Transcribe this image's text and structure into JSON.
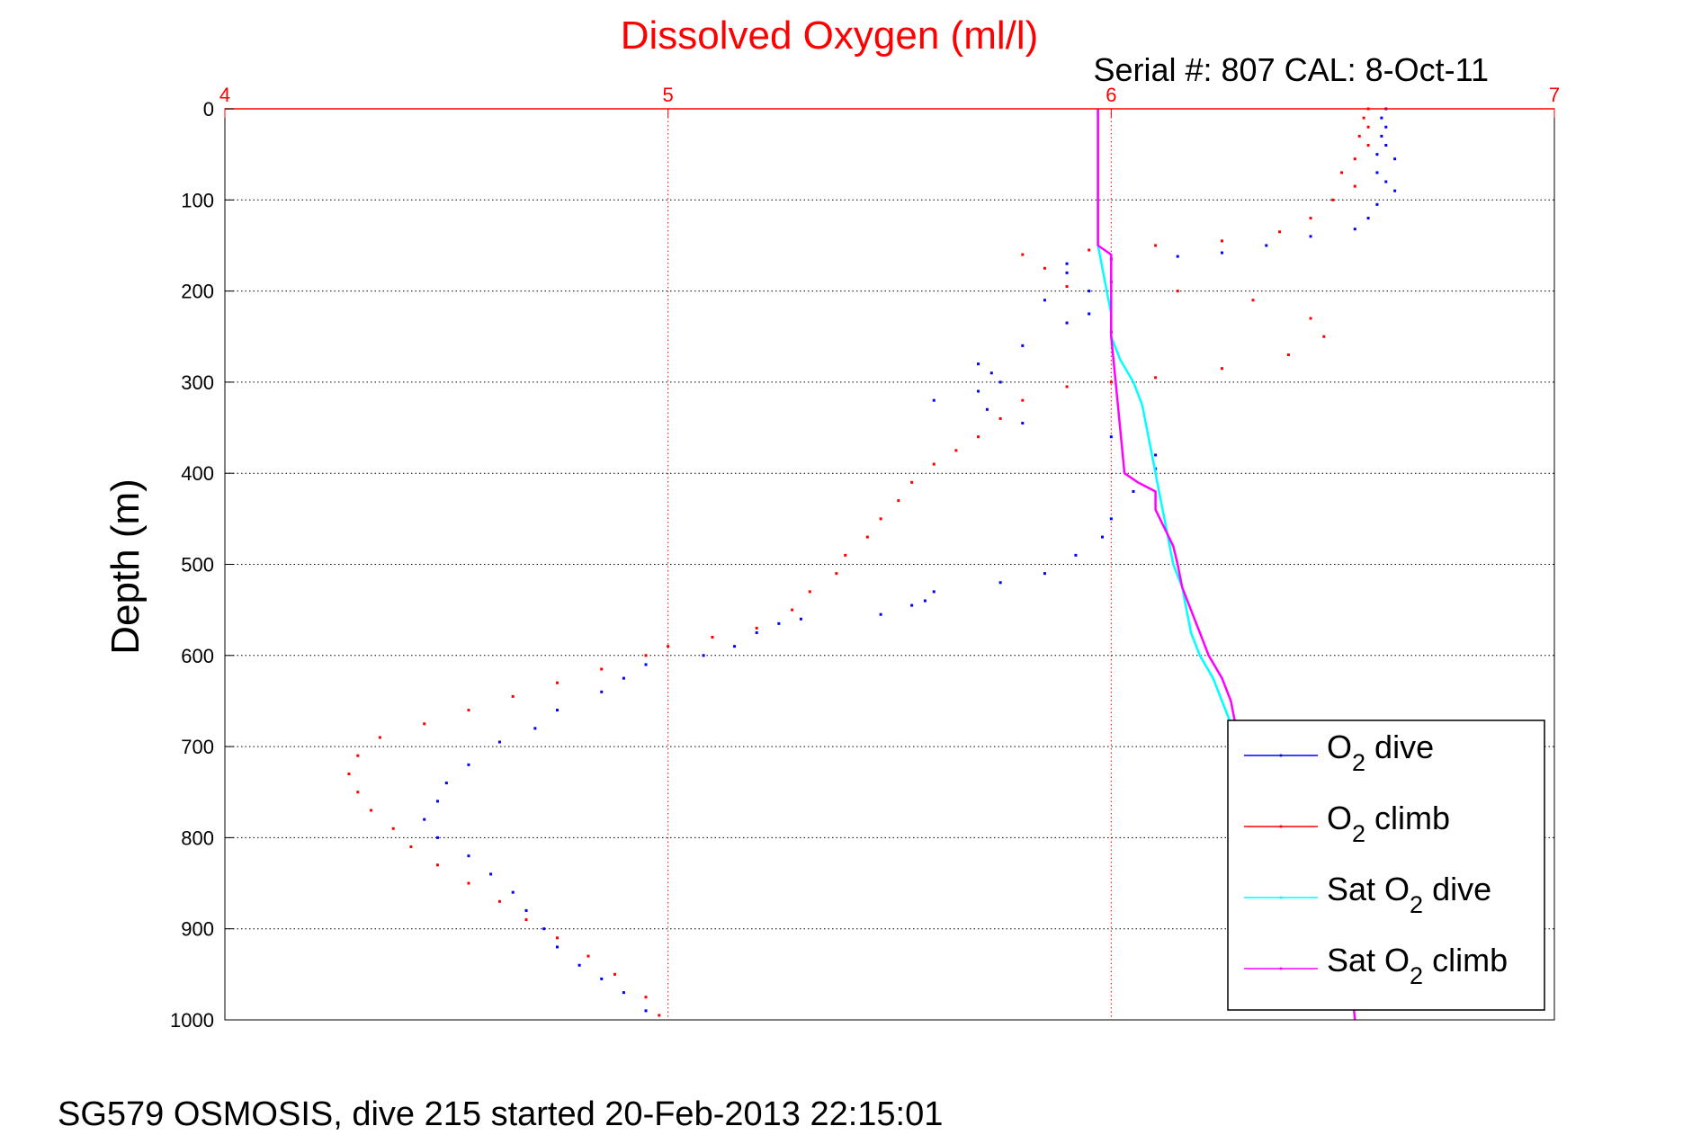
{
  "chart_data": {
    "type": "scatter",
    "title": "Dissolved Oxygen (ml/l)",
    "subtitle": "Serial #: 807  CAL: 8-Oct-11",
    "ylabel": "Depth (m)",
    "xlabel": "",
    "xlim": [
      4,
      7
    ],
    "ylim": [
      0,
      1000
    ],
    "y_reversed": true,
    "x_axis_position": "top",
    "x_ticks": [
      4,
      5,
      6,
      7
    ],
    "y_ticks": [
      0,
      100,
      200,
      300,
      400,
      500,
      600,
      700,
      800,
      900,
      1000
    ],
    "grid": true,
    "legend_position": "bottom-right",
    "colors": {
      "o2_dive": "#0000ff",
      "o2_climb": "#ff0000",
      "sat_dive": "#00ffff",
      "sat_climb": "#ff00ff",
      "x_axis": "#ff0000",
      "title": "#ff0000"
    },
    "series": [
      {
        "name": "O2 dive",
        "legend_label": "O2 dive",
        "style": "dots",
        "points": [
          [
            6.62,
            0
          ],
          [
            6.61,
            10
          ],
          [
            6.62,
            20
          ],
          [
            6.61,
            30
          ],
          [
            6.62,
            40
          ],
          [
            6.6,
            50
          ],
          [
            6.64,
            55
          ],
          [
            6.6,
            70
          ],
          [
            6.62,
            80
          ],
          [
            6.64,
            90
          ],
          [
            6.6,
            105
          ],
          [
            6.58,
            120
          ],
          [
            6.55,
            132
          ],
          [
            6.45,
            140
          ],
          [
            6.35,
            150
          ],
          [
            6.25,
            158
          ],
          [
            6.15,
            162
          ],
          [
            6.0,
            165
          ],
          [
            5.9,
            170
          ],
          [
            5.9,
            180
          ],
          [
            6.0,
            190
          ],
          [
            5.95,
            200
          ],
          [
            5.85,
            210
          ],
          [
            5.95,
            225
          ],
          [
            5.9,
            235
          ],
          [
            6.0,
            245
          ],
          [
            5.8,
            260
          ],
          [
            5.7,
            280
          ],
          [
            5.73,
            290
          ],
          [
            5.75,
            300
          ],
          [
            5.7,
            310
          ],
          [
            5.6,
            320
          ],
          [
            5.72,
            330
          ],
          [
            5.8,
            345
          ],
          [
            6.0,
            360
          ],
          [
            6.1,
            380
          ],
          [
            6.1,
            395
          ],
          [
            6.05,
            420
          ],
          [
            6.0,
            450
          ],
          [
            5.98,
            470
          ],
          [
            5.92,
            490
          ],
          [
            5.85,
            510
          ],
          [
            5.75,
            520
          ],
          [
            5.6,
            530
          ],
          [
            5.58,
            540
          ],
          [
            5.55,
            545
          ],
          [
            5.48,
            555
          ],
          [
            5.3,
            560
          ],
          [
            5.25,
            565
          ],
          [
            5.2,
            575
          ],
          [
            5.15,
            590
          ],
          [
            5.08,
            600
          ],
          [
            4.95,
            610
          ],
          [
            4.9,
            625
          ],
          [
            4.85,
            640
          ],
          [
            4.75,
            660
          ],
          [
            4.7,
            680
          ],
          [
            4.62,
            695
          ],
          [
            4.55,
            720
          ],
          [
            4.5,
            740
          ],
          [
            4.48,
            760
          ],
          [
            4.45,
            780
          ],
          [
            4.48,
            800
          ],
          [
            4.55,
            820
          ],
          [
            4.6,
            840
          ],
          [
            4.65,
            860
          ],
          [
            4.68,
            880
          ],
          [
            4.72,
            900
          ],
          [
            4.75,
            920
          ],
          [
            4.8,
            940
          ],
          [
            4.85,
            955
          ],
          [
            4.9,
            970
          ],
          [
            4.95,
            990
          ]
        ]
      },
      {
        "name": "O2 climb",
        "legend_label": "O2 climb",
        "style": "dots",
        "points": [
          [
            6.58,
            0
          ],
          [
            6.57,
            10
          ],
          [
            6.58,
            20
          ],
          [
            6.56,
            30
          ],
          [
            6.58,
            40
          ],
          [
            6.55,
            55
          ],
          [
            6.52,
            70
          ],
          [
            6.55,
            85
          ],
          [
            6.5,
            100
          ],
          [
            6.45,
            120
          ],
          [
            6.38,
            135
          ],
          [
            6.25,
            145
          ],
          [
            6.1,
            150
          ],
          [
            5.95,
            155
          ],
          [
            5.8,
            160
          ],
          [
            5.85,
            175
          ],
          [
            5.9,
            195
          ],
          [
            6.15,
            200
          ],
          [
            6.32,
            210
          ],
          [
            6.45,
            230
          ],
          [
            6.48,
            250
          ],
          [
            6.4,
            270
          ],
          [
            6.25,
            285
          ],
          [
            6.1,
            295
          ],
          [
            6.0,
            300
          ],
          [
            5.9,
            305
          ],
          [
            5.8,
            320
          ],
          [
            5.75,
            340
          ],
          [
            5.7,
            360
          ],
          [
            5.65,
            375
          ],
          [
            5.6,
            390
          ],
          [
            5.55,
            410
          ],
          [
            5.52,
            430
          ],
          [
            5.48,
            450
          ],
          [
            5.45,
            470
          ],
          [
            5.4,
            490
          ],
          [
            5.38,
            510
          ],
          [
            5.32,
            530
          ],
          [
            5.28,
            550
          ],
          [
            5.2,
            570
          ],
          [
            5.1,
            580
          ],
          [
            5.0,
            590
          ],
          [
            4.95,
            600
          ],
          [
            4.85,
            615
          ],
          [
            4.75,
            630
          ],
          [
            4.65,
            645
          ],
          [
            4.55,
            660
          ],
          [
            4.45,
            675
          ],
          [
            4.35,
            690
          ],
          [
            4.3,
            710
          ],
          [
            4.28,
            730
          ],
          [
            4.3,
            750
          ],
          [
            4.33,
            770
          ],
          [
            4.38,
            790
          ],
          [
            4.42,
            810
          ],
          [
            4.48,
            830
          ],
          [
            4.55,
            850
          ],
          [
            4.62,
            870
          ],
          [
            4.68,
            890
          ],
          [
            4.75,
            910
          ],
          [
            4.82,
            930
          ],
          [
            4.88,
            950
          ],
          [
            4.95,
            975
          ],
          [
            4.98,
            995
          ]
        ]
      },
      {
        "name": "Sat O2 dive",
        "legend_label": "Sat O2 dive",
        "style": "line",
        "points": [
          [
            5.97,
            0
          ],
          [
            5.97,
            50
          ],
          [
            5.97,
            100
          ],
          [
            5.97,
            150
          ],
          [
            5.98,
            175
          ],
          [
            5.99,
            200
          ],
          [
            6.0,
            225
          ],
          [
            6.0,
            250
          ],
          [
            6.02,
            275
          ],
          [
            6.05,
            300
          ],
          [
            6.07,
            325
          ],
          [
            6.08,
            350
          ],
          [
            6.09,
            375
          ],
          [
            6.1,
            400
          ],
          [
            6.11,
            425
          ],
          [
            6.12,
            450
          ],
          [
            6.13,
            475
          ],
          [
            6.14,
            500
          ],
          [
            6.16,
            525
          ],
          [
            6.17,
            550
          ],
          [
            6.18,
            575
          ],
          [
            6.2,
            600
          ],
          [
            6.23,
            625
          ],
          [
            6.25,
            650
          ],
          [
            6.27,
            675
          ]
        ]
      },
      {
        "name": "Sat O2 climb",
        "legend_label": "Sat O2 climb",
        "style": "line",
        "points": [
          [
            5.97,
            0
          ],
          [
            5.97,
            50
          ],
          [
            5.97,
            100
          ],
          [
            5.97,
            150
          ],
          [
            6.0,
            160
          ],
          [
            6.0,
            200
          ],
          [
            6.0,
            250
          ],
          [
            6.01,
            300
          ],
          [
            6.02,
            350
          ],
          [
            6.03,
            400
          ],
          [
            6.06,
            410
          ],
          [
            6.1,
            420
          ],
          [
            6.1,
            440
          ],
          [
            6.12,
            460
          ],
          [
            6.14,
            480
          ],
          [
            6.15,
            500
          ],
          [
            6.16,
            525
          ],
          [
            6.18,
            550
          ],
          [
            6.2,
            575
          ],
          [
            6.22,
            600
          ],
          [
            6.25,
            625
          ],
          [
            6.27,
            650
          ],
          [
            6.28,
            675
          ],
          [
            6.3,
            700
          ],
          [
            6.36,
            750
          ],
          [
            6.42,
            800
          ],
          [
            6.48,
            850
          ],
          [
            6.52,
            900
          ],
          [
            6.54,
            950
          ],
          [
            6.55,
            1000
          ]
        ]
      }
    ]
  },
  "legend": {
    "items": [
      {
        "base": "O",
        "sub": "2",
        "rest": " dive"
      },
      {
        "base": "O",
        "sub": "2",
        "rest": " climb"
      },
      {
        "base": "Sat O",
        "sub": "2",
        "rest": " dive"
      },
      {
        "base": "Sat O",
        "sub": "2",
        "rest": " climb"
      }
    ]
  },
  "footer": {
    "text": "SG579 OSMOSIS, dive 215 started 20-Feb-2013 22:15:01"
  }
}
